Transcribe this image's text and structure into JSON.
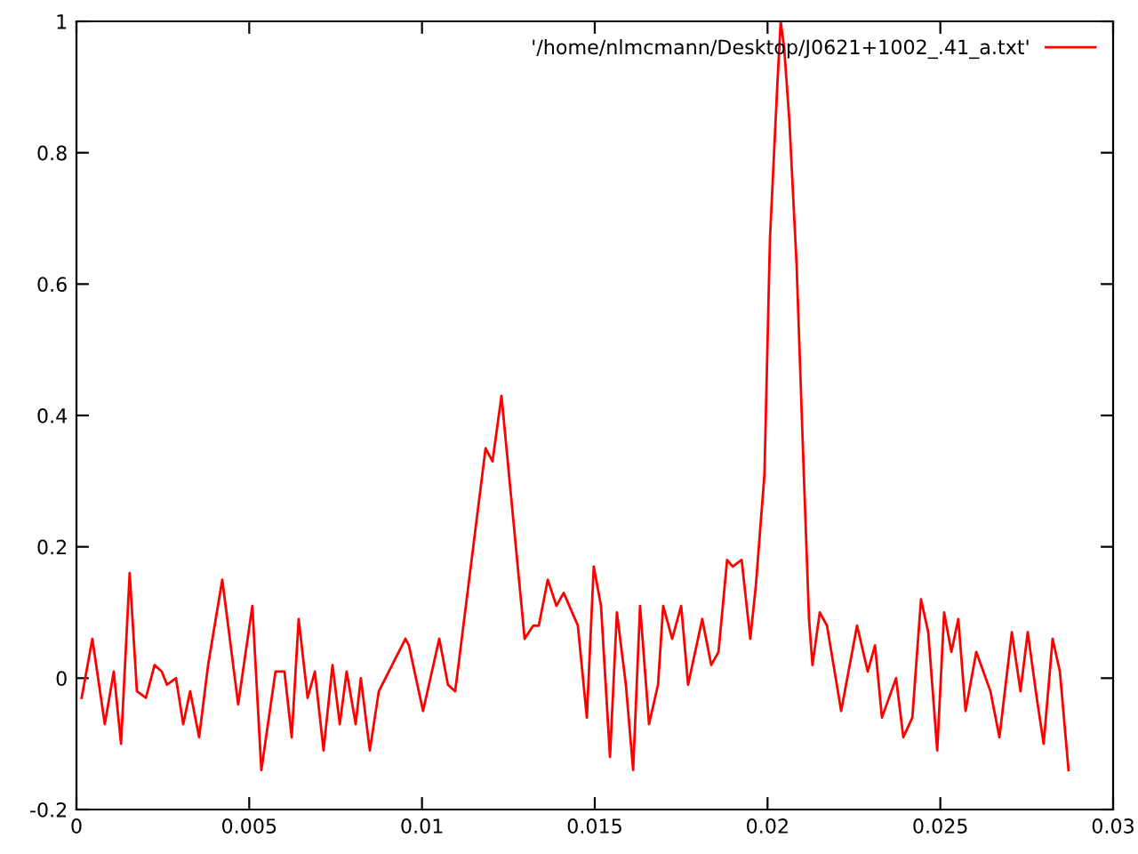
{
  "chart_data": {
    "type": "line",
    "x": [
      0.00015,
      0.00046,
      0.00082,
      0.00108,
      0.00129,
      0.00154,
      0.00175,
      0.00201,
      0.00226,
      0.00247,
      0.00262,
      0.00288,
      0.00309,
      0.00329,
      0.00355,
      0.00381,
      0.00422,
      0.00468,
      0.00509,
      0.00535,
      0.00576,
      0.00602,
      0.00623,
      0.00643,
      0.00669,
      0.0069,
      0.00715,
      0.00741,
      0.00762,
      0.00782,
      0.00808,
      0.00823,
      0.00849,
      0.00875,
      0.00952,
      0.00962,
      0.01003,
      0.0105,
      0.01075,
      0.01096,
      0.01184,
      0.01204,
      0.0123,
      0.01297,
      0.01322,
      0.01338,
      0.01364,
      0.01389,
      0.0141,
      0.01451,
      0.01477,
      0.01497,
      0.01518,
      0.01544,
      0.01564,
      0.0159,
      0.01611,
      0.01631,
      0.01657,
      0.01683,
      0.01698,
      0.01724,
      0.0175,
      0.0177,
      0.01811,
      0.01837,
      0.01858,
      0.01883,
      0.01899,
      0.01925,
      0.0195,
      0.01966,
      0.01991,
      0.02007,
      0.02028,
      0.02038,
      0.02048,
      0.02063,
      0.02084,
      0.02105,
      0.0212,
      0.0213,
      0.02151,
      0.02172,
      0.02213,
      0.02259,
      0.0229,
      0.02311,
      0.02331,
      0.02372,
      0.02393,
      0.02419,
      0.02444,
      0.02465,
      0.02491,
      0.02511,
      0.02532,
      0.02552,
      0.02573,
      0.02604,
      0.02645,
      0.02671,
      0.02707,
      0.02732,
      0.02753,
      0.02779,
      0.02799,
      0.02825,
      0.02846,
      0.02871
    ],
    "series": [
      {
        "name": "'/home/nlmcmann/Desktop/J0621+1002_.41_a.txt'",
        "color": "#ff0000",
        "values": [
          -0.03,
          0.06,
          -0.07,
          0.01,
          -0.1,
          0.16,
          -0.02,
          -0.03,
          0.02,
          0.01,
          -0.01,
          0,
          -0.07,
          -0.02,
          -0.09,
          0.02,
          0.15,
          -0.04,
          0.11,
          -0.14,
          0.01,
          0.01,
          -0.09,
          0.09,
          -0.03,
          0.01,
          -0.11,
          0.02,
          -0.07,
          0.01,
          -0.07,
          0,
          -0.11,
          -0.02,
          0.06,
          0.05,
          -0.05,
          0.06,
          -0.01,
          -0.02,
          0.35,
          0.33,
          0.43,
          0.06,
          0.08,
          0.08,
          0.15,
          0.11,
          0.13,
          0.08,
          -0.06,
          0.17,
          0.11,
          -0.12,
          0.1,
          -0.01,
          -0.14,
          0.11,
          -0.07,
          -0.01,
          0.11,
          0.06,
          0.11,
          -0.01,
          0.09,
          0.02,
          0.04,
          0.18,
          0.17,
          0.18,
          0.06,
          0.14,
          0.31,
          0.67,
          0.9,
          1.0,
          0.96,
          0.85,
          0.63,
          0.31,
          0.09,
          0.02,
          0.1,
          0.08,
          -0.05,
          0.08,
          0.01,
          0.05,
          -0.06,
          0,
          -0.09,
          -0.06,
          0.12,
          0.07,
          -0.11,
          0.1,
          0.04,
          0.09,
          -0.05,
          0.04,
          -0.02,
          -0.09,
          0.07,
          -0.02,
          0.07,
          -0.03,
          -0.1,
          0.06,
          0.01,
          -0.14
        ]
      }
    ],
    "xlim": [
      0,
      0.03
    ],
    "xticks": [
      0,
      0.005,
      0.01,
      0.015,
      0.02,
      0.025,
      0.03
    ],
    "ylim": [
      -0.2,
      1
    ],
    "yticks": [
      -0.2,
      0,
      0.2,
      0.4,
      0.6,
      0.8,
      1
    ],
    "grid": false,
    "legend": "top right",
    "marker": "none",
    "line_style": "solid"
  }
}
